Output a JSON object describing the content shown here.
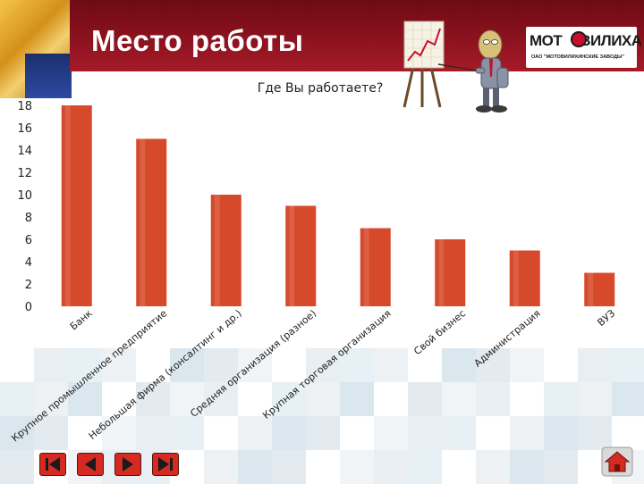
{
  "slide": {
    "title": "Место работы"
  },
  "logo": {
    "name_left": "МОТ",
    "name_right": "ВИЛИХА",
    "subtitle": "ОАО \"МОТОВИЛИХИНСКИЕ ЗАВОДЫ\""
  },
  "colors": {
    "bar": "#d6492a",
    "header": "#8f1320",
    "nav_button": "#d42a22"
  },
  "chart_data": {
    "type": "bar",
    "title": "Где Вы работаете?",
    "xlabel": "",
    "ylabel": "",
    "categories": [
      "Банк",
      "Крупное промышленное предприятие",
      "Небольшая фирма (консалтинг и др.)",
      "Средняя организация (разное)",
      "Крупная торговая организация",
      "Свой бизнес",
      "Администрация",
      "ВУЗ"
    ],
    "values": [
      18,
      15,
      10,
      9,
      7,
      6,
      5,
      3
    ],
    "ylim": [
      0,
      18
    ],
    "yticks": [
      0,
      2,
      4,
      6,
      8,
      10,
      12,
      14,
      16,
      18
    ],
    "grid": false,
    "legend": "none"
  },
  "nav": {
    "buttons": [
      "first-slide",
      "previous-slide",
      "next-slide",
      "last-slide"
    ],
    "home": "home"
  }
}
